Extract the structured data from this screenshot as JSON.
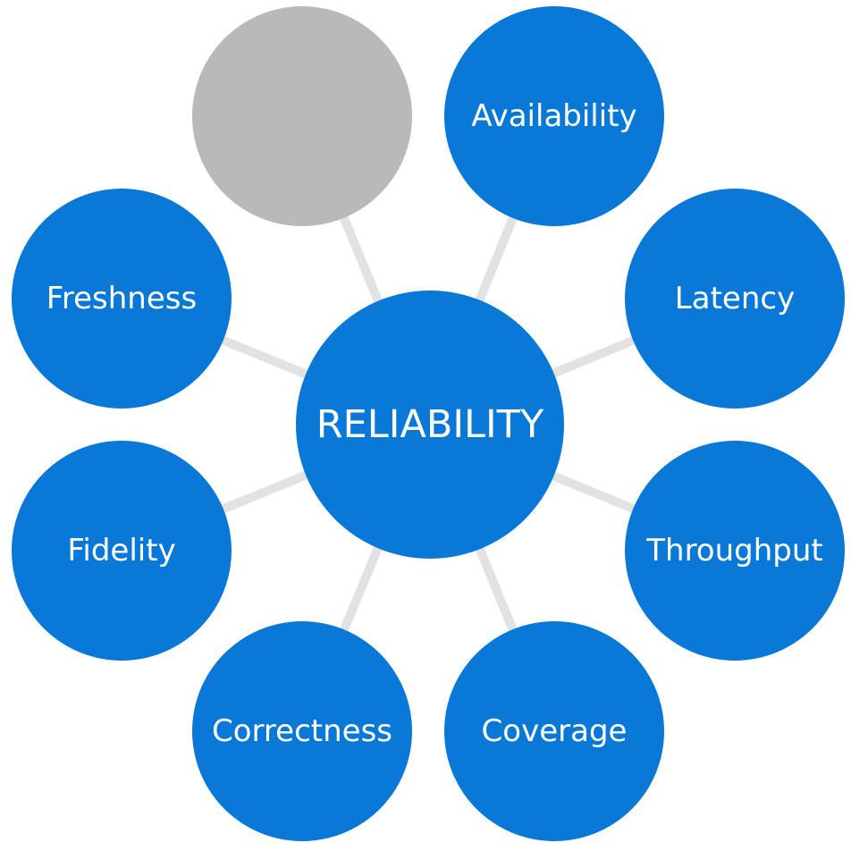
{
  "diagram": {
    "center": {
      "label": "RELIABILITY"
    },
    "nodes": [
      {
        "id": "blank",
        "label": ""
      },
      {
        "id": "availability",
        "label": "Availability"
      },
      {
        "id": "latency",
        "label": "Latency"
      },
      {
        "id": "throughput",
        "label": "Throughput"
      },
      {
        "id": "coverage",
        "label": "Coverage"
      },
      {
        "id": "correctness",
        "label": "Correctness"
      },
      {
        "id": "fidelity",
        "label": "Fidelity"
      },
      {
        "id": "freshness",
        "label": "Freshness"
      }
    ],
    "colors": {
      "node_fill": "#0a78d6",
      "blank_fill": "#b9b9b9",
      "connector": "#e2e2e2",
      "text": "#ffffff"
    }
  }
}
